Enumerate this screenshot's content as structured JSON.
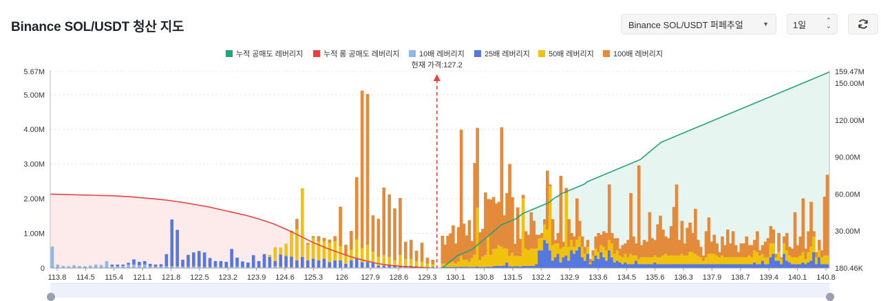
{
  "header": {
    "title": "Binance SOL/USDT 청산 지도",
    "pair_select": "Binance SOL/USDT 퍼페추얼",
    "period_select": "1일"
  },
  "colors": {
    "short_cum": "#26a17b",
    "long_cum": "#e84142",
    "lev10": "#8fb8e8",
    "lev25": "#5577e0",
    "lev50": "#f0c20e",
    "lev100": "#e38a3b"
  },
  "chart_data": {
    "type": "bar",
    "current_price_label": "현재 가격:127.2",
    "current_price": 127.2,
    "legend": [
      "누적 공매도 레버리지",
      "누적 롱 공매도 레버리지",
      "10배 레버리지",
      "25배 레버리지",
      "50배 레버리지",
      "100배 레버리지"
    ],
    "x_tick_labels": [
      "113.8",
      "114.5",
      "115.4",
      "121.1",
      "121.8",
      "122.5",
      "123.2",
      "123.9",
      "124.6",
      "125.3",
      "126",
      "127.9",
      "128.6",
      "129.3",
      "130.1",
      "130.8",
      "131.5",
      "132.2",
      "132.9",
      "133.6",
      "134.5",
      "135.6",
      "136.3",
      "137.9",
      "138.7",
      "139.4",
      "140.1",
      "140.8"
    ],
    "x_range": [
      113.8,
      140.8
    ],
    "left_axis": {
      "ticks": [
        "0",
        "1.00M",
        "2.00M",
        "3.00M",
        "4.00M",
        "5.00M",
        "5.67M"
      ],
      "range": [
        0,
        5.67
      ]
    },
    "right_axis": {
      "ticks": [
        "180.46K",
        "30.00M",
        "60.00M",
        "90.00M",
        "120.00M",
        "150.00M",
        "159.47M"
      ],
      "range": [
        0,
        159.47
      ]
    },
    "left_bars": [
      [
        0.62,
        0,
        0,
        0
      ],
      [
        0.1,
        0,
        0,
        0
      ],
      [
        0.06,
        0,
        0,
        0
      ],
      [
        0.05,
        0,
        0,
        0
      ],
      [
        0.08,
        0,
        0,
        0
      ],
      [
        0.06,
        0,
        0,
        0
      ],
      [
        0.05,
        0,
        0,
        0
      ],
      [
        0.07,
        0,
        0,
        0
      ],
      [
        0.1,
        0,
        0,
        0
      ],
      [
        0.09,
        0,
        0,
        0
      ],
      [
        0.2,
        0,
        0,
        0
      ],
      [
        0.05,
        0.05,
        0,
        0
      ],
      [
        0.05,
        0.05,
        0,
        0
      ],
      [
        0.06,
        0.04,
        0,
        0
      ],
      [
        0.1,
        0.05,
        0,
        0
      ],
      [
        0.1,
        0.15,
        0,
        0
      ],
      [
        0.08,
        0.1,
        0,
        0
      ],
      [
        0.1,
        0.1,
        0,
        0
      ],
      [
        0.05,
        0.07,
        0,
        0
      ],
      [
        0.04,
        0.06,
        0,
        0
      ],
      [
        0.05,
        0.06,
        0,
        0
      ],
      [
        0.05,
        0.35,
        0,
        0
      ],
      [
        0.05,
        1.35,
        0,
        0
      ],
      [
        0.05,
        1.05,
        0,
        0
      ],
      [
        0.04,
        0.2,
        0,
        0
      ],
      [
        0.04,
        0.34,
        0,
        0
      ],
      [
        0.05,
        0.4,
        0,
        0
      ],
      [
        0.04,
        0.45,
        0,
        0
      ],
      [
        0.03,
        0.42,
        0,
        0
      ],
      [
        0.03,
        0.26,
        0,
        0
      ],
      [
        0.04,
        0.16,
        0,
        0
      ],
      [
        0.03,
        0.17,
        0,
        0
      ],
      [
        0.02,
        0.16,
        0,
        0
      ],
      [
        0.03,
        0.52,
        0,
        0
      ],
      [
        0.04,
        0.26,
        0,
        0
      ],
      [
        0.03,
        0.16,
        0,
        0
      ],
      [
        0.02,
        0.14,
        0,
        0
      ],
      [
        0.02,
        0.35,
        0,
        0
      ],
      [
        0.02,
        0.18,
        0,
        0
      ],
      [
        0.02,
        0.38,
        0,
        0
      ],
      [
        0.02,
        0.3,
        0.06,
        0
      ],
      [
        0.05,
        0.15,
        0.4,
        0
      ],
      [
        0.04,
        0.35,
        0.2,
        0
      ],
      [
        0.03,
        0.32,
        0.35,
        0
      ],
      [
        0.03,
        0.3,
        0.7,
        0.05
      ],
      [
        0.02,
        0.2,
        0.9,
        0.3
      ],
      [
        0.02,
        0.3,
        1.98,
        0
      ],
      [
        0.02,
        0.2,
        0.45,
        0.05
      ],
      [
        0.02,
        0.25,
        0.6,
        0.05
      ],
      [
        0.02,
        0.2,
        0.55,
        0.15
      ],
      [
        0.02,
        0.25,
        0.5,
        0.1
      ],
      [
        0.02,
        0.15,
        0.55,
        0.1
      ],
      [
        0.02,
        0.2,
        0.55,
        0.15
      ],
      [
        0.02,
        0.2,
        0.4,
        1.15
      ],
      [
        0.02,
        0.1,
        0.25,
        0.3
      ],
      [
        0.02,
        0.2,
        0.3,
        0.55
      ],
      [
        0.02,
        0.25,
        0.55,
        1.8
      ],
      [
        0.02,
        0.15,
        0.4,
        4.55
      ],
      [
        0.02,
        0.15,
        0.5,
        4.35
      ],
      [
        0.02,
        0.15,
        0.3,
        1.05
      ],
      [
        0.02,
        0.05,
        0.25,
        1.1
      ],
      [
        0.02,
        0.05,
        0.3,
        1.95
      ],
      [
        0.02,
        0.05,
        0.25,
        1.8
      ],
      [
        0.02,
        0.05,
        0.15,
        1.5
      ],
      [
        0.02,
        0.05,
        0.3,
        1.65
      ],
      [
        0.02,
        0.04,
        0.2,
        0.5
      ],
      [
        0.02,
        0.04,
        0.2,
        0.55
      ],
      [
        0.02,
        0.03,
        0.15,
        0.3
      ],
      [
        0.01,
        0.02,
        0.15,
        0.55
      ],
      [
        0.01,
        0.02,
        0.1,
        0.17
      ],
      [
        0.01,
        0.02,
        0.08,
        0.13
      ]
    ],
    "right_bars": [
      [
        0.01,
        0.02,
        0.1,
        0.8
      ],
      [
        0.01,
        0.02,
        0.1,
        0.55
      ],
      [
        0.01,
        0.02,
        0.1,
        0.8
      ],
      [
        0.01,
        0.02,
        0.12,
        0.85
      ],
      [
        0.01,
        0.02,
        0.15,
        1.05
      ],
      [
        0.01,
        0.02,
        0.1,
        0.58
      ],
      [
        0.01,
        0.02,
        0.15,
        1.0
      ],
      [
        0.01,
        0.03,
        0.3,
        3.65
      ],
      [
        0.01,
        0.02,
        0.2,
        1.05
      ],
      [
        0.01,
        0.03,
        0.2,
        0.7
      ],
      [
        0.01,
        0.02,
        0.15,
        1.2
      ],
      [
        0.01,
        0.02,
        0.25,
        0.5
      ],
      [
        0.01,
        0.02,
        0.35,
        2.65
      ],
      [
        0.01,
        0.03,
        1.7,
        2.3
      ],
      [
        0.01,
        0.02,
        0.2,
        0.8
      ],
      [
        0.01,
        0.02,
        0.3,
        0.8
      ],
      [
        0.01,
        0.02,
        0.35,
        1.8
      ],
      [
        0.01,
        0.03,
        0.9,
        1.05
      ],
      [
        0.01,
        0.02,
        0.35,
        1.6
      ],
      [
        0.01,
        0.04,
        0.5,
        1.5
      ],
      [
        0.01,
        0.05,
        0.5,
        1.3
      ],
      [
        0.01,
        0.05,
        0.6,
        1.25
      ],
      [
        0.01,
        0.05,
        0.55,
        3.45
      ],
      [
        0.01,
        0.06,
        0.5,
        0.95
      ],
      [
        0.01,
        0.15,
        0.4,
        1.6
      ],
      [
        0.01,
        0.04,
        0.3,
        2.65
      ],
      [
        0.01,
        0.03,
        0.4,
        1.6
      ],
      [
        0.01,
        0.04,
        0.3,
        0.35
      ],
      [
        0.01,
        0.04,
        0.3,
        1.4
      ],
      [
        0.01,
        0.03,
        0.3,
        0.5
      ],
      [
        0.01,
        0.05,
        1.95,
        0.1
      ],
      [
        0.01,
        0.05,
        0.5,
        0.5
      ],
      [
        0.01,
        0.05,
        0.45,
        0.45
      ],
      [
        0.01,
        0.05,
        0.5,
        1.05
      ],
      [
        0.01,
        0.05,
        0.5,
        0.8
      ],
      [
        0.01,
        0.1,
        0.45,
        0.4
      ],
      [
        0.01,
        0.5,
        0.35,
        0.1
      ],
      [
        0.01,
        0.5,
        0.35,
        0.15
      ],
      [
        0.01,
        0.8,
        0.45,
        0.15
      ],
      [
        0.01,
        0.7,
        0.4,
        1.7
      ],
      [
        0.01,
        0.5,
        1.85,
        0.05
      ],
      [
        0.01,
        0.2,
        0.45,
        0.75
      ],
      [
        0.01,
        0.3,
        0.4,
        0.1
      ],
      [
        0.01,
        0.4,
        0.3,
        0.3
      ],
      [
        0.01,
        0.15,
        0.4,
        2.1
      ],
      [
        0.01,
        0.3,
        0.3,
        0.15
      ],
      [
        0.01,
        0.35,
        1.8,
        0.15
      ],
      [
        0.01,
        0.2,
        0.4,
        0.8
      ],
      [
        0.01,
        0.5,
        0.3,
        0.2
      ],
      [
        0.01,
        0.4,
        0.2,
        0.3
      ],
      [
        0.01,
        0.5,
        0.3,
        1.2
      ],
      [
        0.01,
        0.6,
        0.3,
        0.45
      ],
      [
        0.01,
        0.3,
        0.3,
        0.3
      ],
      [
        0.01,
        0.2,
        0.2,
        0.2
      ],
      [
        0.01,
        0.4,
        0.2,
        0.2
      ],
      [
        0.01,
        0.1,
        0.05,
        0.1
      ],
      [
        0.01,
        0.2,
        0.15,
        0.15
      ],
      [
        0.01,
        0.35,
        0.2,
        0.35
      ],
      [
        0.01,
        0.25,
        0.2,
        0.55
      ],
      [
        0.01,
        0.45,
        0.2,
        0.3
      ],
      [
        0.01,
        0.3,
        0.3,
        0.45
      ],
      [
        0.01,
        0.2,
        0.3,
        0.5
      ],
      [
        0.01,
        0.5,
        0.3,
        1.6
      ],
      [
        0.01,
        0.3,
        0.4,
        0.3
      ],
      [
        0.01,
        0.15,
        0.25,
        0.45
      ],
      [
        0.01,
        0.2,
        0.3,
        0.35
      ],
      [
        0.01,
        0.15,
        0.2,
        0.2
      ],
      [
        0.01,
        0.1,
        0.2,
        0.35
      ],
      [
        0.01,
        0.15,
        0.25,
        0.3
      ],
      [
        0.01,
        0.1,
        0.2,
        0.5
      ],
      [
        0.01,
        0.1,
        0.3,
        1.75
      ],
      [
        0.01,
        0.1,
        0.25,
        0.55
      ],
      [
        0.01,
        0.2,
        0.15,
        0.35
      ],
      [
        0.01,
        0.1,
        0.15,
        2.7
      ],
      [
        0.01,
        0.1,
        0.2,
        0.35
      ],
      [
        0.01,
        0.1,
        0.2,
        0.5
      ],
      [
        0.01,
        0.1,
        0.2,
        0.45
      ],
      [
        0.01,
        0.1,
        0.2,
        1.3
      ],
      [
        0.01,
        0.1,
        0.2,
        0.55
      ],
      [
        0.01,
        0.15,
        0.2,
        0.45
      ],
      [
        0.01,
        0.1,
        0.2,
        0.95
      ],
      [
        0.01,
        0.1,
        0.2,
        1.2
      ],
      [
        0.01,
        0.1,
        0.25,
        0.75
      ],
      [
        0.01,
        0.1,
        0.3,
        0.5
      ],
      [
        0.01,
        0.1,
        0.25,
        0.5
      ],
      [
        0.01,
        0.1,
        0.25,
        0.85
      ],
      [
        0.01,
        0.1,
        0.25,
        1.4
      ],
      [
        0.01,
        0.1,
        0.25,
        2.05
      ],
      [
        0.01,
        0.1,
        0.25,
        0.45
      ],
      [
        0.01,
        0.1,
        0.3,
        0.95
      ],
      [
        0.01,
        0.1,
        0.25,
        0.35
      ],
      [
        0.01,
        0.1,
        0.25,
        0.8
      ],
      [
        0.01,
        0.1,
        0.35,
        0.85
      ],
      [
        0.01,
        0.1,
        0.35,
        0.55
      ],
      [
        0.01,
        0.1,
        0.3,
        1.3
      ],
      [
        0.01,
        0.1,
        0.25,
        0.45
      ],
      [
        0.01,
        0.1,
        0.2,
        0.3
      ],
      [
        0.01,
        0.1,
        0.1,
        0.15
      ],
      [
        0.01,
        0.1,
        0.2,
        0.75
      ],
      [
        0.01,
        0.1,
        0.3,
        1.05
      ],
      [
        0.01,
        0.1,
        0.3,
        0.35
      ],
      [
        0.01,
        0.1,
        0.3,
        0.55
      ],
      [
        0.01,
        0.1,
        0.25,
        0.35
      ],
      [
        0.01,
        0.1,
        0.2,
        0.15
      ],
      [
        0.01,
        0.1,
        0.25,
        0.55
      ],
      [
        0.01,
        0.1,
        0.2,
        0.35
      ],
      [
        0.01,
        0.1,
        0.2,
        0.8
      ],
      [
        0.01,
        0.1,
        0.2,
        0.4
      ],
      [
        0.01,
        0.1,
        0.2,
        0.75
      ],
      [
        0.01,
        0.1,
        0.2,
        0.35
      ],
      [
        0.01,
        0.1,
        0.2,
        0.15
      ],
      [
        0.01,
        0.1,
        0.2,
        0.4
      ],
      [
        0.01,
        0.1,
        0.2,
        0.4
      ],
      [
        0.01,
        0.1,
        0.2,
        0.6
      ],
      [
        0.01,
        0.1,
        0.25,
        0.3
      ],
      [
        0.01,
        0.1,
        0.2,
        0.35
      ],
      [
        0.01,
        0.15,
        0.35,
        0.3
      ],
      [
        0.01,
        0.1,
        0.35,
        0.6
      ],
      [
        0.01,
        0.1,
        0.25,
        0.15
      ],
      [
        0.01,
        0.2,
        0.2,
        0.25
      ],
      [
        0.01,
        0.1,
        0.2,
        0.45
      ],
      [
        0.01,
        0.1,
        0.2,
        0.55
      ],
      [
        0.01,
        0.3,
        0.4,
        0.5
      ],
      [
        0.01,
        0.4,
        0.3,
        0.4
      ],
      [
        0.01,
        0.2,
        0.1,
        0.1
      ],
      [
        0.01,
        0.2,
        0.25,
        0.55
      ],
      [
        0.01,
        0.1,
        0.15,
        0.05
      ],
      [
        0.01,
        0.4,
        0.3,
        0.2
      ],
      [
        0.01,
        0.2,
        0.3,
        0.5
      ],
      [
        0.01,
        0.15,
        0.2,
        0.25
      ],
      [
        0.01,
        0.1,
        0.2,
        0.25
      ],
      [
        0.01,
        0.1,
        0.2,
        1.3
      ],
      [
        0.01,
        0.1,
        0.2,
        0.35
      ],
      [
        0.01,
        0.1,
        0.25,
        0.55
      ],
      [
        0.01,
        0.15,
        0.3,
        1.55
      ],
      [
        0.01,
        0.1,
        0.15,
        0.3
      ],
      [
        0.01,
        0.15,
        0.3,
        0.6
      ],
      [
        0.01,
        0.2,
        0.4,
        1.3
      ],
      [
        0.01,
        0.45,
        0.45,
        0.15
      ],
      [
        0.01,
        0.1,
        0.2,
        0.15
      ],
      [
        0.01,
        0.3,
        0.2,
        0.3
      ],
      [
        0.01,
        0.1,
        0.2,
        0.2
      ],
      [
        0.01,
        0.1,
        0.25,
        1.7
      ],
      [
        0.01,
        0.1,
        0.25,
        2.33
      ]
    ],
    "short_cumulative": [
      0.4,
      2,
      4,
      6,
      8,
      10,
      11,
      12,
      13,
      14,
      15,
      17,
      19,
      21,
      23,
      25,
      27,
      29,
      31,
      33,
      35,
      36,
      37,
      38,
      39,
      40,
      42,
      44,
      45,
      46,
      47,
      48,
      49,
      50,
      51,
      52,
      53,
      55,
      57,
      58,
      60,
      61,
      62,
      63,
      64,
      65,
      66,
      67,
      68,
      70,
      71,
      72,
      73,
      74,
      75,
      76,
      77,
      78,
      79,
      80,
      81,
      82,
      83,
      84,
      85,
      86,
      87,
      88,
      90,
      92,
      94,
      96,
      98,
      100,
      102,
      103,
      104,
      105,
      106,
      107,
      108,
      109,
      110,
      111,
      112,
      113,
      114,
      115,
      116,
      117,
      118,
      119,
      120,
      121,
      122,
      123,
      124,
      125,
      126,
      127,
      128,
      129,
      130,
      131,
      132,
      133,
      134,
      135,
      136,
      137,
      138,
      139,
      140,
      141,
      142,
      143,
      144,
      145,
      146,
      147,
      148,
      149,
      150,
      151,
      152,
      153,
      154,
      155,
      156,
      157,
      158,
      159
    ],
    "long_cumulative": [
      2.0,
      1.99,
      1.98,
      1.97,
      1.96,
      1.95,
      1.93,
      1.9,
      1.87,
      1.83,
      1.78,
      1.72,
      1.66,
      1.58,
      1.5,
      1.42,
      1.32,
      1.2,
      1.05,
      0.88,
      0.7,
      0.55,
      0.42,
      0.3,
      0.2,
      0.12,
      0.07,
      0.04,
      0.02,
      0.01
    ]
  }
}
